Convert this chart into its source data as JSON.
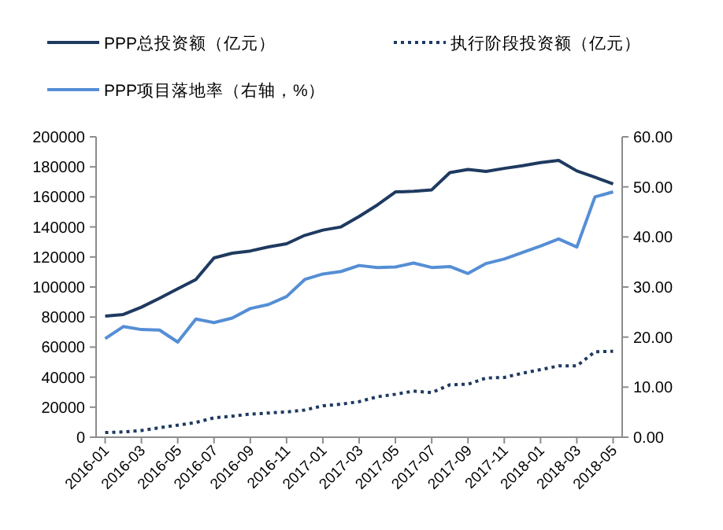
{
  "chart_data": {
    "type": "line",
    "categories": [
      "2016-01",
      null,
      "2016-03",
      null,
      "2016-05",
      null,
      "2016-07",
      null,
      "2016-09",
      null,
      "2016-11",
      null,
      "2017-01",
      null,
      "2017-03",
      null,
      "2017-05",
      null,
      "2017-07",
      null,
      "2017-09",
      null,
      "2017-11",
      null,
      "2018-01",
      null,
      "2018-03",
      null,
      "2018-05"
    ],
    "series": [
      {
        "name": "PPP总投资额（亿元）",
        "color": "#1f3a60",
        "line_style": "solid",
        "values": [
          80600,
          81700,
          86600,
          92500,
          98800,
          105000,
          119400,
          122500,
          124000,
          126700,
          128800,
          134400,
          137900,
          140000,
          147000,
          154600,
          163300,
          163700,
          164700,
          176200,
          178300,
          177000,
          179000,
          180800,
          182900,
          184300,
          177300,
          173100,
          168600
        ]
      },
      {
        "name": "执行阶段投资额（亿元）",
        "color": "#1f3a60",
        "line_style": "dotted",
        "values": [
          3100,
          3500,
          4500,
          6300,
          8000,
          9800,
          12900,
          14000,
          15400,
          16100,
          16800,
          18100,
          20900,
          22000,
          23700,
          26900,
          28600,
          30700,
          29700,
          34900,
          35300,
          39400,
          39800,
          42600,
          45000,
          47500,
          47500,
          56900,
          57200
        ]
      },
      {
        "name": "PPP项目落地率（右轴，%）",
        "color": "#558ed5",
        "line_style": "solid",
        "axis": "y2",
        "values": [
          19.7,
          22.1,
          21.5,
          21.4,
          19.0,
          23.6,
          22.9,
          23.8,
          25.7,
          26.5,
          28.1,
          31.5,
          32.6,
          33.1,
          34.3,
          33.9,
          34.0,
          34.8,
          33.9,
          34.1,
          32.7,
          34.7,
          35.6,
          36.9,
          38.2,
          39.6,
          38.0,
          48.0,
          49.0
        ]
      }
    ],
    "ylim": [
      0,
      200000
    ],
    "yticks": [
      0,
      20000,
      40000,
      60000,
      80000,
      100000,
      120000,
      140000,
      160000,
      180000,
      200000
    ],
    "y2lim": [
      0,
      60
    ],
    "y2ticks": [
      {
        "value": 0,
        "label": "0.00"
      },
      {
        "value": 10,
        "label": "10.00"
      },
      {
        "value": 20,
        "label": "20.00"
      },
      {
        "value": 30,
        "label": "30.00"
      },
      {
        "value": 40,
        "label": "40.00"
      },
      {
        "value": 50,
        "label": "50.00"
      },
      {
        "value": 60,
        "label": "60.00"
      }
    ],
    "legend": "top"
  }
}
